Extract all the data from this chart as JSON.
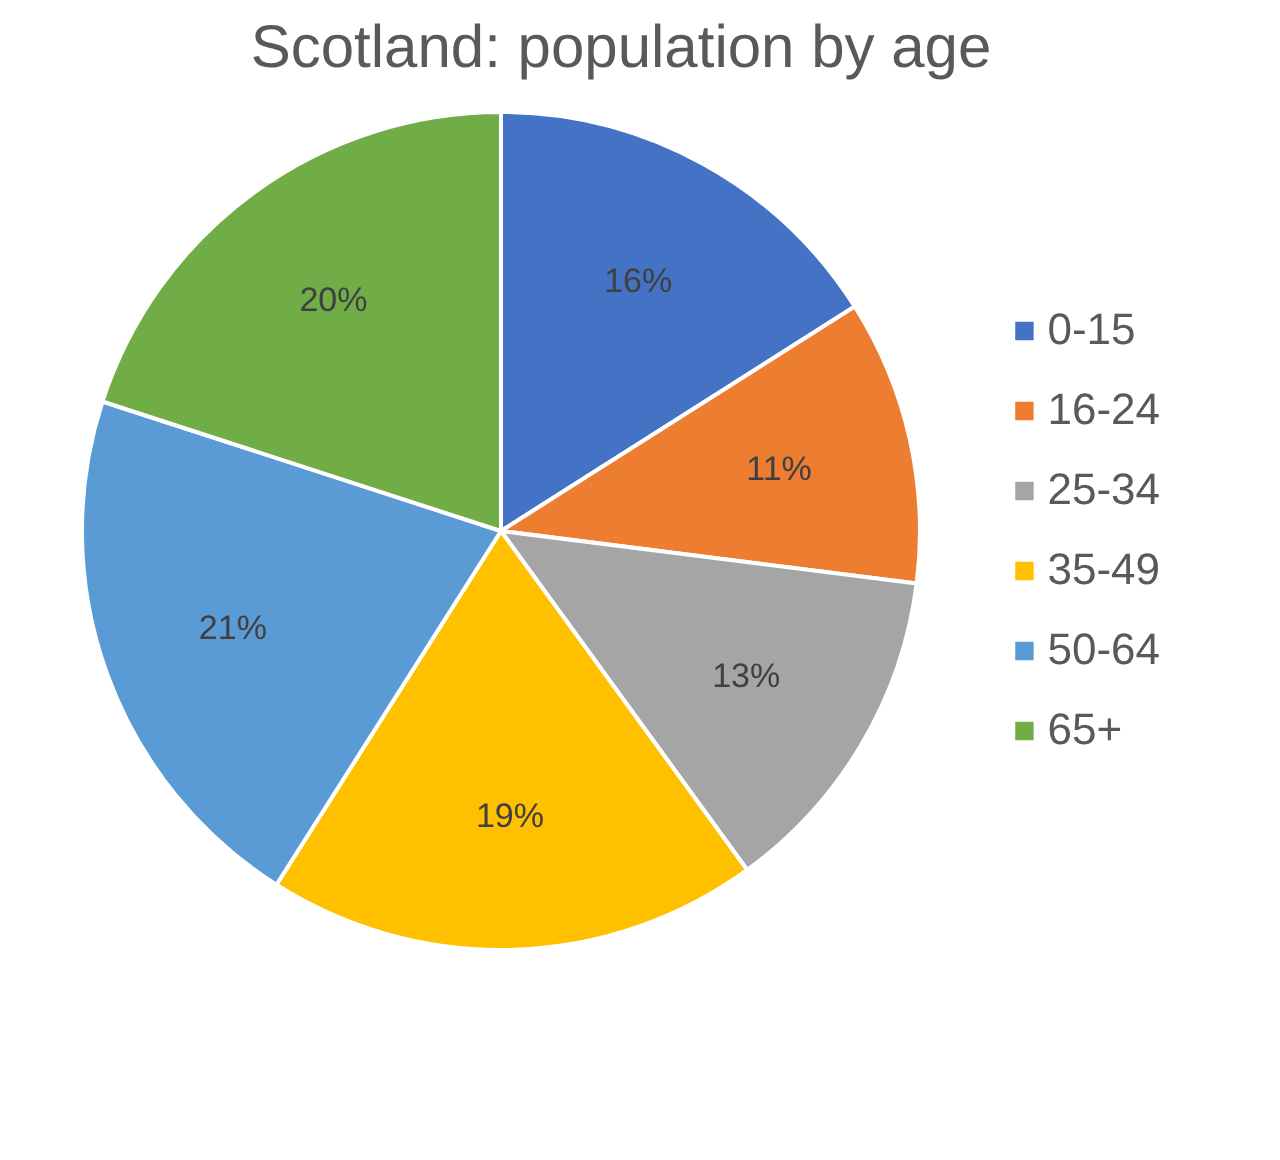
{
  "chart_data": {
    "type": "pie",
    "title": "Scotland: population by age",
    "categories": [
      "0-15",
      "16-24",
      "25-34",
      "35-49",
      "50-64",
      "65+"
    ],
    "values": [
      16,
      11,
      13,
      19,
      21,
      20
    ],
    "colors": [
      "#4472c4",
      "#ed7d31",
      "#a5a5a5",
      "#ffc000",
      "#5b9bd5",
      "#70ad47"
    ],
    "value_labels": [
      "16%",
      "11%",
      "13%",
      "19%",
      "21%",
      "20%"
    ],
    "legend": "right"
  }
}
